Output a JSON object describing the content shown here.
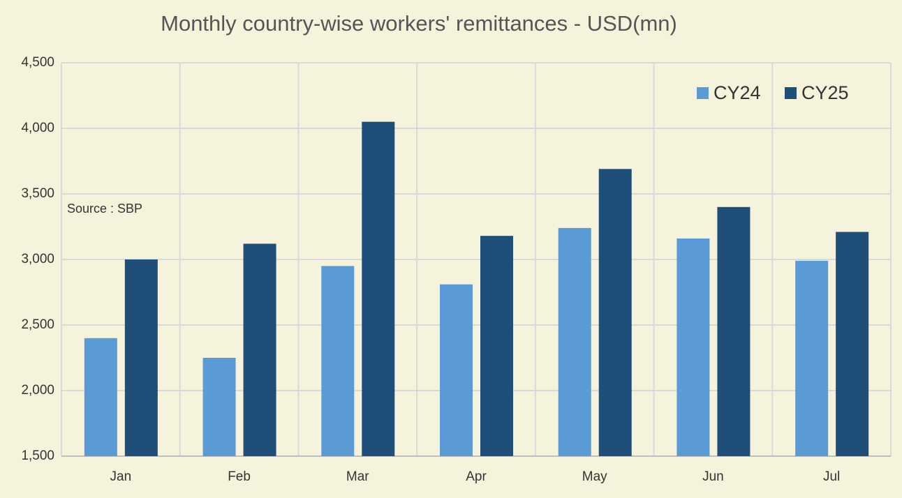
{
  "chart_data": {
    "type": "bar",
    "title": "Monthly country-wise workers' remittances - USD(mn)",
    "annotation": "Source : SBP",
    "categories": [
      "Jan",
      "Feb",
      "Mar",
      "Apr",
      "May",
      "Jun",
      "Jul"
    ],
    "series": [
      {
        "name": "CY24",
        "color": "#5b9bd5",
        "values": [
          2400,
          2250,
          2950,
          2810,
          3240,
          3160,
          2990
        ]
      },
      {
        "name": "CY25",
        "color": "#1f4e79",
        "values": [
          3000,
          3120,
          4050,
          3180,
          3690,
          3400,
          3210
        ]
      }
    ],
    "ylim": [
      1500,
      4500
    ],
    "yticks": [
      {
        "value": 1500,
        "label": "1,500"
      },
      {
        "value": 2000,
        "label": "2,000"
      },
      {
        "value": 2500,
        "label": "2,500"
      },
      {
        "value": 3000,
        "label": "3,000"
      },
      {
        "value": 3500,
        "label": "3,500"
      },
      {
        "value": 4000,
        "label": "4,000"
      },
      {
        "value": 4500,
        "label": "4,500"
      }
    ],
    "grid": true,
    "legend": "top-right"
  }
}
